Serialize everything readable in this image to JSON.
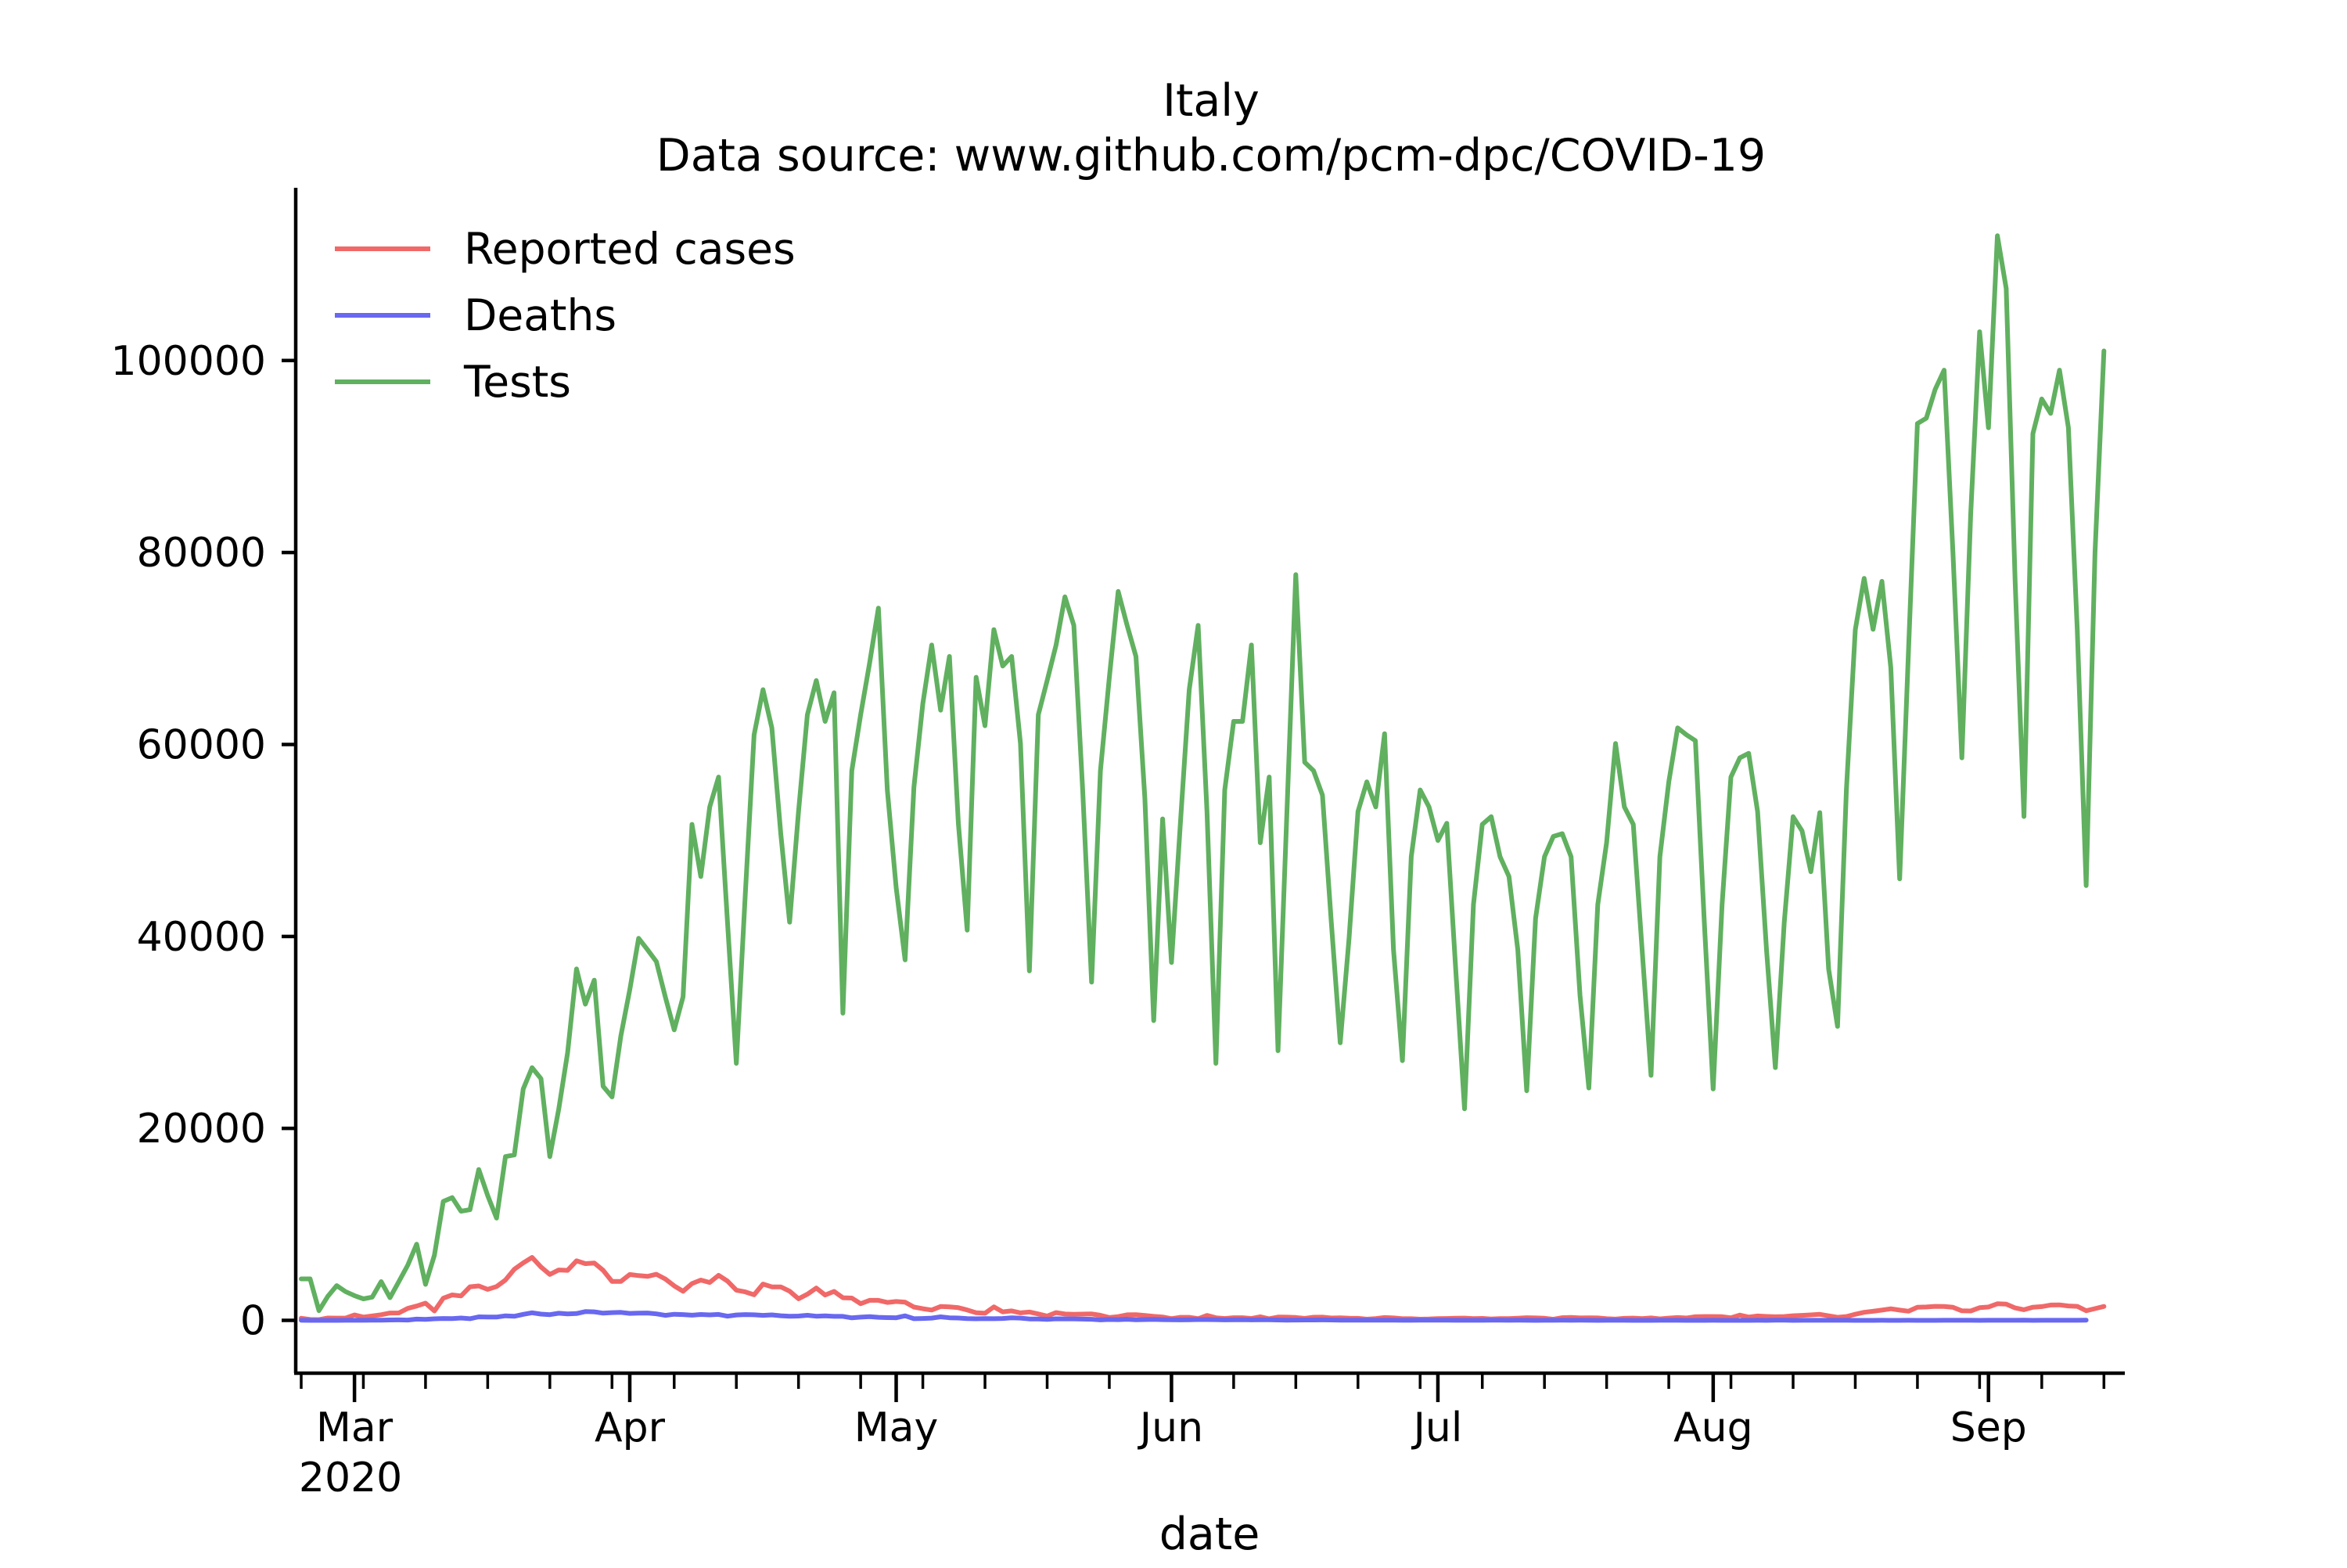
{
  "chart_data": {
    "type": "line",
    "title": "Italy",
    "subtitle": "Data source: www.github.com/pcm-dpc/COVID-19",
    "xlabel": "date",
    "ylabel": "",
    "grid": false,
    "legend_position": "top-left",
    "x_start": "2020-02-24",
    "x_end": "2020-09-16",
    "x_ticks": [
      {
        "date": "2020-03-01",
        "label": "Mar",
        "sublabel": "2020"
      },
      {
        "date": "2020-04-01",
        "label": "Apr"
      },
      {
        "date": "2020-05-01",
        "label": "May"
      },
      {
        "date": "2020-06-01",
        "label": "Jun"
      },
      {
        "date": "2020-07-01",
        "label": "Jul"
      },
      {
        "date": "2020-08-01",
        "label": "Aug"
      },
      {
        "date": "2020-09-01",
        "label": "Sep"
      }
    ],
    "ylim": [
      -5500,
      118000
    ],
    "y_ticks": [
      0,
      20000,
      40000,
      60000,
      80000,
      100000
    ],
    "series": [
      {
        "name": "Reported cases",
        "color": "#f06868",
        "values": [
          221,
          93,
          78,
          250,
          238,
          240,
          566,
          342,
          466,
          587,
          769,
          778,
          1247,
          1492,
          1797,
          977,
          2313,
          2651,
          2547,
          3497,
          3590,
          3233,
          3526,
          4207,
          5322,
          5986,
          6557,
          5560,
          4789,
          5249,
          5210,
          6203,
          5909,
          5974,
          5217,
          4050,
          4053,
          4782,
          4668,
          4585,
          4805,
          4316,
          3599,
          3039,
          3836,
          4204,
          3951,
          4694,
          4092,
          3153,
          2972,
          2667,
          3786,
          3493,
          3491,
          3047,
          2256,
          2729,
          3370,
          2646,
          3021,
          2357,
          2324,
          1739,
          2091,
          2086,
          1872,
          1965,
          1900,
          1389,
          1221,
          1075,
          1444,
          1401,
          1327,
          1083,
          802,
          744,
          1402,
          888,
          992,
          789,
          875,
          675,
          451,
          813,
          665,
          642,
          652,
          669,
          531,
          300,
          397,
          584,
          593,
          516,
          416,
          355,
          178,
          318,
          321,
          177,
          518,
          270,
          197,
          280,
          283,
          202,
          379,
          163,
          346,
          338,
          301,
          210,
          329,
          333,
          251,
          262,
          224,
          218,
          122,
          190,
          296,
          255,
          175,
          174,
          126,
          142,
          187,
          201,
          223,
          235,
          192,
          208,
          138,
          193,
          188,
          234,
          276,
          255,
          219,
          114,
          282,
          306,
          252,
          275,
          255,
          170,
          129,
          212,
          239,
          190,
          259,
          159,
          238,
          295,
          247,
          379,
          401,
          402,
          384,
          274,
          552,
          347,
          463,
          412,
          379,
          401,
          481,
          523,
          574,
          629,
          479,
          320,
          403,
          642,
          845,
          947,
          1071,
          1210,
          1071,
          953,
          1367,
          1397,
          1462,
          1444,
          1365,
          996,
          978,
          1326,
          1397,
          1733,
          1695,
          1297,
          1108,
          1370,
          1434,
          1597,
          1616,
          1501,
          1458,
          1008,
          1229,
          1452
        ]
      },
      {
        "name": "Deaths",
        "color": "#6868f0",
        "values": [
          7,
          4,
          5,
          5,
          5,
          8,
          12,
          11,
          27,
          28,
          41,
          49,
          36,
          133,
          97,
          168,
          196,
          189,
          250,
          175,
          368,
          349,
          345,
          475,
          427,
          627,
          793,
          651,
          601,
          743,
          683,
          712,
          919,
          889,
          756,
          812,
          837,
          727,
          760,
          766,
          681,
          525,
          636,
          604,
          542,
          610,
          570,
          619,
          431,
          566,
          602,
          578,
          525,
          575,
          482,
          433,
          454,
          534,
          437,
          464,
          420,
          415,
          260,
          333,
          382,
          323,
          285,
          269,
          474,
          174,
          195,
          236,
          369,
          274,
          243,
          194,
          165,
          179,
          172,
          195,
          262,
          242,
          153,
          145,
          99,
          162,
          161,
          156,
          130,
          119,
          50,
          92,
          78,
          117,
          70,
          87,
          111,
          75,
          60,
          55,
          71,
          88,
          85,
          72,
          53,
          65,
          79,
          53,
          56,
          66,
          44,
          26,
          34,
          43,
          47,
          49,
          47,
          23,
          30,
          24,
          30,
          21,
          15,
          21,
          12,
          13,
          20,
          15,
          18,
          30,
          12,
          9,
          13,
          7,
          30,
          15,
          12,
          19,
          10,
          5,
          11,
          14,
          17,
          12,
          20,
          14,
          5,
          11,
          13,
          10,
          5,
          6,
          3,
          7,
          8,
          11,
          5,
          5,
          2,
          8,
          6,
          6,
          5,
          4,
          14,
          6,
          17,
          15,
          5,
          12,
          13,
          9,
          9,
          7,
          7,
          3,
          5,
          6,
          7,
          2,
          4,
          9,
          5,
          4,
          4,
          10,
          14,
          10,
          8,
          5,
          10,
          10,
          10,
          11,
          16,
          6,
          7,
          11,
          14,
          10,
          9,
          24
        ]
      },
      {
        "name": "Tests",
        "color": "#60b060",
        "values": [
          4324,
          4324,
          1017,
          2514,
          3624,
          2997,
          2578,
          2247,
          2424,
          4035,
          2363,
          4054,
          5753,
          7944,
          3749,
          6802,
          12390,
          12793,
          11372,
          11531,
          15723,
          13000,
          10655,
          17066,
          17236,
          24109,
          26336,
          25180,
          17066,
          22013,
          27863,
          36615,
          32943,
          35447,
          24395,
          23281,
          29646,
          34455,
          39809,
          38617,
          37375,
          33713,
          30271,
          33713,
          51680,
          46244,
          53495,
          56609,
          41483,
          26779,
          44314,
          60999,
          65705,
          61725,
          50708,
          41483,
          53010,
          63101,
          66658,
          62406,
          65387,
          32003,
          57272,
          63101,
          68456,
          74208,
          55263,
          45092,
          37554,
          55558,
          64263,
          70359,
          63580,
          69171,
          51795,
          40658,
          67003,
          61959,
          71968,
          68176,
          69171,
          60101,
          36406,
          63101,
          66658,
          70359,
          75380,
          72410,
          55263,
          35241,
          57272,
          67003,
          75946,
          72410,
          69171,
          54392,
          31231,
          52251,
          37299,
          51795,
          65705,
          72410,
          53010,
          26779,
          55263,
          62406,
          62406,
          70359,
          49773,
          56609,
          28091,
          53010,
          77695,
          58153,
          57272,
          54718,
          41483,
          28929,
          39809,
          53010,
          56100,
          53495,
          61125,
          38617,
          27058,
          48310,
          55263,
          53495,
          50000,
          51795,
          36615,
          22048,
          43313,
          51680,
          52474,
          48310,
          46244,
          38617,
          23930,
          41880,
          48310,
          50423,
          50708,
          48310,
          33865,
          24214,
          43313,
          49773,
          60101,
          53495,
          51680,
          38617,
          25525,
          48310,
          56100,
          61725,
          61000,
          60400,
          41483,
          24109,
          43313,
          56609,
          58602,
          59082,
          53010,
          38617,
          26336,
          41483,
          52474,
          51000,
          46744,
          52900,
          36615,
          30626,
          55263,
          71968,
          77309,
          72000,
          77000,
          68000,
          46000,
          70000,
          93440,
          94000,
          97000,
          99000,
          80000,
          58602,
          84000,
          103000,
          93000,
          113000,
          107500,
          77000,
          52500,
          92378,
          96000,
          94500,
          99000,
          93000,
          72000,
          45300,
          80000,
          101000
        ]
      }
    ]
  }
}
